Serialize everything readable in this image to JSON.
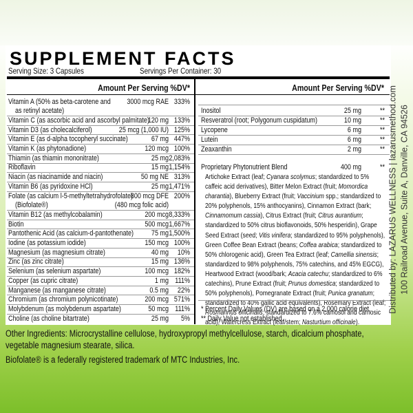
{
  "label": {
    "title": "SUPPLEMENT FACTS",
    "serving_size": "Serving Size: 3 Capsules",
    "servings_per_container": "Servings Per Container: 30",
    "left_header": "Amount Per Serving %DV*",
    "right_header": "Amount Per Serving %DV*",
    "left_rows": [
      {
        "name": [
          "Vitamin A (50% as beta-carotene and",
          "as retinyl acetate)"
        ],
        "amount": "3000 mcg RAE",
        "dv": "333%"
      },
      {
        "name": "Vitamin C (as ascorbic acid and ascorbyl palmitate)",
        "amount": "120 mg",
        "dv": "133%"
      },
      {
        "name": "Vitamin D3 (as cholecalciferol)",
        "amount": "25 mcg (1,000 IU)",
        "dv": "125%"
      },
      {
        "name": "Vitamin E (as d-alpha tocopheryl succinate)",
        "amount": "67 mg",
        "dv": "447%"
      },
      {
        "name": "Vitamin K (as phytonadione)",
        "amount": "120 mcg",
        "dv": "100%"
      },
      {
        "name": "Thiamin (as thiamin mononitrate)",
        "amount": "25 mg",
        "dv": "2,083%"
      },
      {
        "name": "Riboflavin",
        "amount": "15 mg",
        "dv": "1,154%"
      },
      {
        "name": "Niacin (as niacinamide and niacin)",
        "amount": "50 mg NE",
        "dv": "313%"
      },
      {
        "name": "Vitamin B6 (as pyridoxine HCl)",
        "amount": "25 mg",
        "dv": "1,471%"
      },
      {
        "name": [
          "Folate (as calcium l-5-methyltetrahydrofolate)",
          "(Biofolate®)"
        ],
        "amount": [
          "800 mcg DFE",
          "(480 mcg folic acid)"
        ],
        "dv": "200%"
      },
      {
        "name": "Vitamin B12 (as methylcobalamin)",
        "amount": "200 mcg",
        "dv": "8,333%"
      },
      {
        "name": "Biotin",
        "amount": "500 mcg",
        "dv": "1,667%"
      },
      {
        "name": "Pantothenic Acid (as calcium-d-pantothenate)",
        "amount": "75 mg",
        "dv": "1,500%"
      },
      {
        "name": "Iodine (as potassium iodide)",
        "amount": "150 mcg",
        "dv": "100%"
      },
      {
        "name": "Magnesium (as magnesium citrate)",
        "amount": "40 mg",
        "dv": "10%"
      },
      {
        "name": "Zinc (as zinc citrate)",
        "amount": "15 mg",
        "dv": "136%"
      },
      {
        "name": "Selenium (as selenium aspartate)",
        "amount": "100 mcg",
        "dv": "182%"
      },
      {
        "name": "Copper (as cupric citrate)",
        "amount": "1 mg",
        "dv": "111%"
      },
      {
        "name": "Manganese (as manganese citrate)",
        "amount": "0.5 mg",
        "dv": "22%"
      },
      {
        "name": "Chromium (as chromium polynicotinate)",
        "amount": "200 mcg",
        "dv": "571%"
      },
      {
        "name": "Molybdenum (as molybdenum aspartate)",
        "amount": "50 mcg",
        "dv": "111%"
      },
      {
        "name": "Choline (as choline bitartrate)",
        "amount": "25 mg",
        "dv": "5%"
      }
    ],
    "right_rows": [
      {
        "name": "Inositol",
        "amount": "25 mg",
        "dv": "**"
      },
      {
        "name": "Resveratrol (root; Polygonum cuspidatum)",
        "amount": "10 mg",
        "dv": "**"
      },
      {
        "name": "Lycopene",
        "amount": "6 mg",
        "dv": "**"
      },
      {
        "name": "Lutein",
        "amount": "6 mg",
        "dv": "**"
      },
      {
        "name": "Zeaxanthin",
        "amount": "2 mg",
        "dv": "**"
      }
    ],
    "blend": {
      "name": "Proprietary Phytonutrient Blend",
      "amount": "400 mg",
      "dv": "**",
      "segments": [
        {
          "text": "Artichoke Extract (leaf; ",
          "italic": false
        },
        {
          "text": "Cyanara scolymus",
          "italic": true
        },
        {
          "text": "; standardized to 5% caffeic acid derivatives), Bitter Melon Extract (fruit; ",
          "italic": false
        },
        {
          "text": "Momordica charantia",
          "italic": true
        },
        {
          "text": "), Blueberry Extract (fruit; ",
          "italic": false
        },
        {
          "text": "Vaccinium",
          "italic": true
        },
        {
          "text": " spp.; standardized to 20% polyphenols, 15% anthocyanins), Cinnamon Extract (bark; ",
          "italic": false
        },
        {
          "text": "Cinnamomum cassia",
          "italic": true
        },
        {
          "text": "), Citrus Extract (fruit; ",
          "italic": false
        },
        {
          "text": "Citrus aurantium",
          "italic": true
        },
        {
          "text": "; standardized to 50% citrus bioflavonoids, 50% hesperidin), Grape Seed Extract (seed; ",
          "italic": false
        },
        {
          "text": "Vitis vinifera",
          "italic": true
        },
        {
          "text": "; standardized to 95% polyphenols), Green Coffee Bean Extract (beans; ",
          "italic": false
        },
        {
          "text": "Coffea arabica",
          "italic": true
        },
        {
          "text": "; standardized to 50% chlorogenic acid), Green Tea Extract (leaf; ",
          "italic": false
        },
        {
          "text": "Camellia sinensis",
          "italic": true
        },
        {
          "text": "; standardized to 98% polyphenols, 75% catechins, and 45% EGCG), Heartwood Extract (wood/bark; ",
          "italic": false
        },
        {
          "text": "Acacia catechu",
          "italic": true
        },
        {
          "text": "; standardized to 6% catechins), Prune Extract (fruit; ",
          "italic": false
        },
        {
          "text": "Prunus domestica",
          "italic": true
        },
        {
          "text": "; standardized to 50% polyphenols), Pomegranate Extract (fruit; ",
          "italic": false
        },
        {
          "text": "Punica granatum",
          "italic": true
        },
        {
          "text": "; standardized to 40% gallic acid equivalents), Rosemary Extract (leaf; ",
          "italic": false
        },
        {
          "text": "Rosmarinus officinalis",
          "italic": true
        },
        {
          "text": "; standardized to 7.6% camosol and carnosic acid), Watercress Extract (leaf/stem; ",
          "italic": false
        },
        {
          "text": "Nasturtium officinale",
          "italic": true
        },
        {
          "text": ").",
          "italic": false
        }
      ]
    },
    "footnotes": [
      "* Percent Daily Values (DV) are based on a 2,000 calorie diet.",
      "** Daily Value not established."
    ],
    "other_ingredients": "Other Ingredients: Microcrystalline cellulose, hydroxypropyl methylcellulose, starch, dicalcium phosphate, vegetable magnesium stearate, silica.",
    "trademark": "Biofolate® is a federally registered trademark of MTC Industries, Inc.",
    "distributor": [
      "Distributed by: LAZARUS WELLNESS | lazarusmethod.com",
      "100 Railroad Avenue, Suite A, Danville, CA 94526"
    ]
  }
}
